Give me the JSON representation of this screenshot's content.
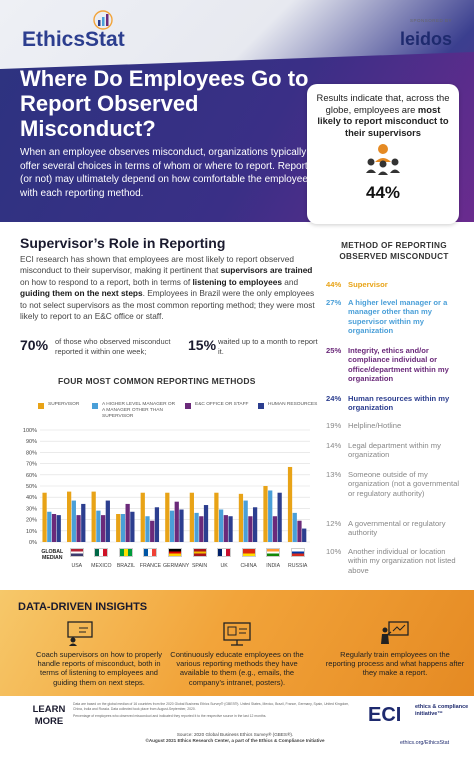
{
  "header": {
    "logo_main": "EthicsStat",
    "sponsor_label": "SPONSORED BY",
    "sponsor_name": "leidos",
    "title": "Where Do Employees Go to Report Observed Misconduct?",
    "intro": "When an employee observes misconduct, organizations typically offer several choices in terms of whom or where to report. Reporting (or not) may ultimately depend on how comfortable the employee is with each reporting method."
  },
  "callout": {
    "text_pre": "Results indicate that, across the globe, employees are ",
    "text_bold": "most likely to report misconduct to their supervisors",
    "percent": "44%",
    "icon": "supervisor-icon"
  },
  "supervisor_section": {
    "title": "Supervisor’s Role in Reporting",
    "body_1": "ECI research has shown that employees are most likely to report observed misconduct to their supervisor, making it pertinent that ",
    "body_bold_1": "supervisors are trained",
    "body_2": " on how to respond to a report, both in terms of ",
    "body_bold_2": "listening to employees",
    "body_3": " and ",
    "body_bold_3": "guiding them on the next steps",
    "body_4": ". Employees in Brazil were the only employees to not select supervisors as the most common reporting method; they were most likely to report to an E&C office or staff.",
    "stat1_value": "70%",
    "stat1_text": "of those who observed misconduct reported it within one week;",
    "stat2_value": "15%",
    "stat2_text": "waited up to a month to report it."
  },
  "methods": {
    "title": "METHOD OF REPORTING OBSERVED MISCONDUCT",
    "items": [
      {
        "pct": "44%",
        "label": "Supervisor",
        "color": "#e8a317",
        "bold": true
      },
      {
        "pct": "27%",
        "label": "A higher level manager or a manager other than my supervisor within my organization",
        "color": "#4a9fd8",
        "bold": true
      },
      {
        "pct": "25%",
        "label": "Integrity, ethics and/or compliance individual or office/department within my organization",
        "color": "#6b2a7a",
        "bold": true
      },
      {
        "pct": "24%",
        "label": "Human resources within my organization",
        "color": "#2c3e8f",
        "bold": true
      },
      {
        "pct": "19%",
        "label": "Helpline/Hotline",
        "color": "#888888",
        "bold": false
      },
      {
        "pct": "14%",
        "label": "Legal department within my organization",
        "color": "#888888",
        "bold": false
      },
      {
        "pct": "13%",
        "label": "Someone outside of my organization (not a governmental or regulatory authority)",
        "color": "#888888",
        "bold": false
      },
      {
        "pct": "12%",
        "label": "A governmental or regulatory authority",
        "color": "#888888",
        "bold": false
      },
      {
        "pct": "10%",
        "label": "Another individual or location within my organization not listed above",
        "color": "#888888",
        "bold": false
      }
    ]
  },
  "chart_data": {
    "type": "bar",
    "title": "FOUR MOST COMMON REPORTING METHODS",
    "categories": [
      "GLOBAL MEDIAN",
      "USA",
      "MEXICO",
      "BRAZIL",
      "FRANCE",
      "GERMANY",
      "SPAIN",
      "UK",
      "CHINA",
      "INDIA",
      "RUSSIA"
    ],
    "ylim": [
      0,
      100
    ],
    "yticks": [
      "0%",
      "10%",
      "20%",
      "30%",
      "40%",
      "50%",
      "60%",
      "70%",
      "80%",
      "90%",
      "100%"
    ],
    "series": [
      {
        "name": "SUPERVISOR",
        "color": "#e8a317",
        "values": [
          44,
          45,
          45,
          25,
          44,
          44,
          44,
          44,
          43,
          50,
          67
        ]
      },
      {
        "name": "A HIGHER LEVEL MANAGER OR A MANAGER OTHER THAN SUPERVISOR",
        "color": "#4a9fd8",
        "values": [
          27,
          37,
          28,
          25,
          23,
          28,
          26,
          29,
          37,
          46,
          26
        ]
      },
      {
        "name": "E&C OFFICE OR STAFF",
        "color": "#6b2a7a",
        "values": [
          25,
          24,
          24,
          34,
          19,
          36,
          23,
          24,
          23,
          23,
          19
        ]
      },
      {
        "name": "HUMAN RESOURCES",
        "color": "#2c3e8f",
        "values": [
          24,
          34,
          37,
          27,
          31,
          29,
          33,
          23,
          31,
          44,
          12
        ]
      }
    ]
  },
  "insights": {
    "title": "DATA-DRIVEN INSIGHTS",
    "items": [
      {
        "icon": "training-board-icon",
        "text": "Coach supervisors on how to properly handle reports of misconduct, both in terms of listening to employees and guiding them on next steps."
      },
      {
        "icon": "communication-screen-icon",
        "text": "Continuously educate employees on the various reporting methods they have available to them (e.g., emails, the company’s intranet, posters)."
      },
      {
        "icon": "presentation-icon",
        "text": "Regularly train employees on the reporting process and what happens after they make a report."
      }
    ]
  },
  "footer": {
    "learn_more": "LEARN MORE",
    "note_1": "Data are based on the global median of 16 countries from the 2020 Global Business Ethics Survey® (GBES®). United States, Mexico, Brazil, France, Germany, Spain, United Kingdom, China, India and Russia. Data collected took place from August-September, 2020.",
    "note_2": "Percentage of employees who observed misconduct and indicated they reported it to the respective source in the last 12 months.",
    "source": "Source: 2020 Global Business Ethics Survey® (GBES®).",
    "copyright": "©August 2021 Ethics Research Center, a part of the Ethics & Compliance Initiative",
    "eci_logo": "ECI",
    "eci_sub": "ethics & compliance initiative™",
    "url": "ethics.org/EthicsStat"
  }
}
